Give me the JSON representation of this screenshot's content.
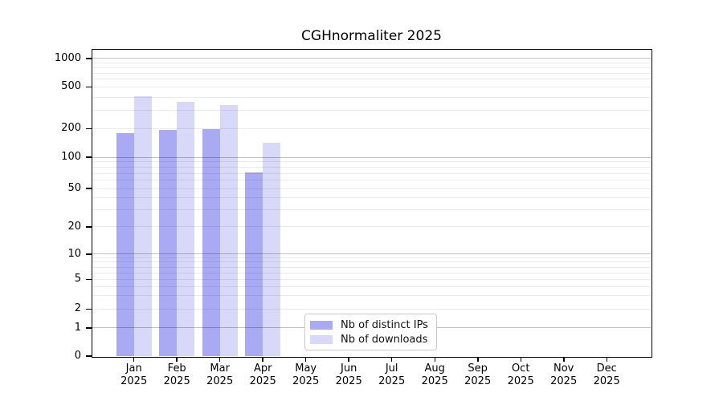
{
  "title": "CGHnormaliter 2025",
  "legend": {
    "items": [
      {
        "label": "Nb of distinct IPs",
        "color": "#a9a9f4"
      },
      {
        "label": "Nb of downloads",
        "color": "#d8d8f9"
      }
    ]
  },
  "chart_data": {
    "type": "bar",
    "title": "CGHnormaliter 2025",
    "months": [
      "Jan",
      "Feb",
      "Mar",
      "Apr",
      "May",
      "Jun",
      "Jul",
      "Aug",
      "Sep",
      "Oct",
      "Nov",
      "Dec"
    ],
    "year": "2025",
    "x_categories": [
      "Jan 2025",
      "Feb 2025",
      "Mar 2025",
      "Apr 2025",
      "May 2025",
      "Jun 2025",
      "Jul 2025",
      "Aug 2025",
      "Sep 2025",
      "Oct 2025",
      "Nov 2025",
      "Dec 2025"
    ],
    "series": [
      {
        "name": "Nb of distinct IPs",
        "color": "#a9a9f4",
        "values": [
          179,
          193,
          196,
          72,
          null,
          null,
          null,
          null,
          null,
          null,
          null,
          null
        ]
      },
      {
        "name": "Nb of downloads",
        "color": "#d8d8f9",
        "values": [
          406,
          358,
          335,
          141,
          null,
          null,
          null,
          null,
          null,
          null,
          null,
          null
        ]
      }
    ],
    "xlabel": "",
    "ylabel": "",
    "y_axis": {
      "ticks": [
        0,
        1,
        2,
        5,
        10,
        20,
        50,
        100,
        200,
        500,
        1000
      ],
      "scale": "symlog",
      "range": [
        0,
        1220
      ]
    },
    "grid": {
      "horizontal": true,
      "major_at": [
        1,
        10,
        100,
        1000
      ],
      "minor": "2-9 within each decade",
      "drawn_over_bars": true
    },
    "legend_position": "inside plot, lower center"
  }
}
